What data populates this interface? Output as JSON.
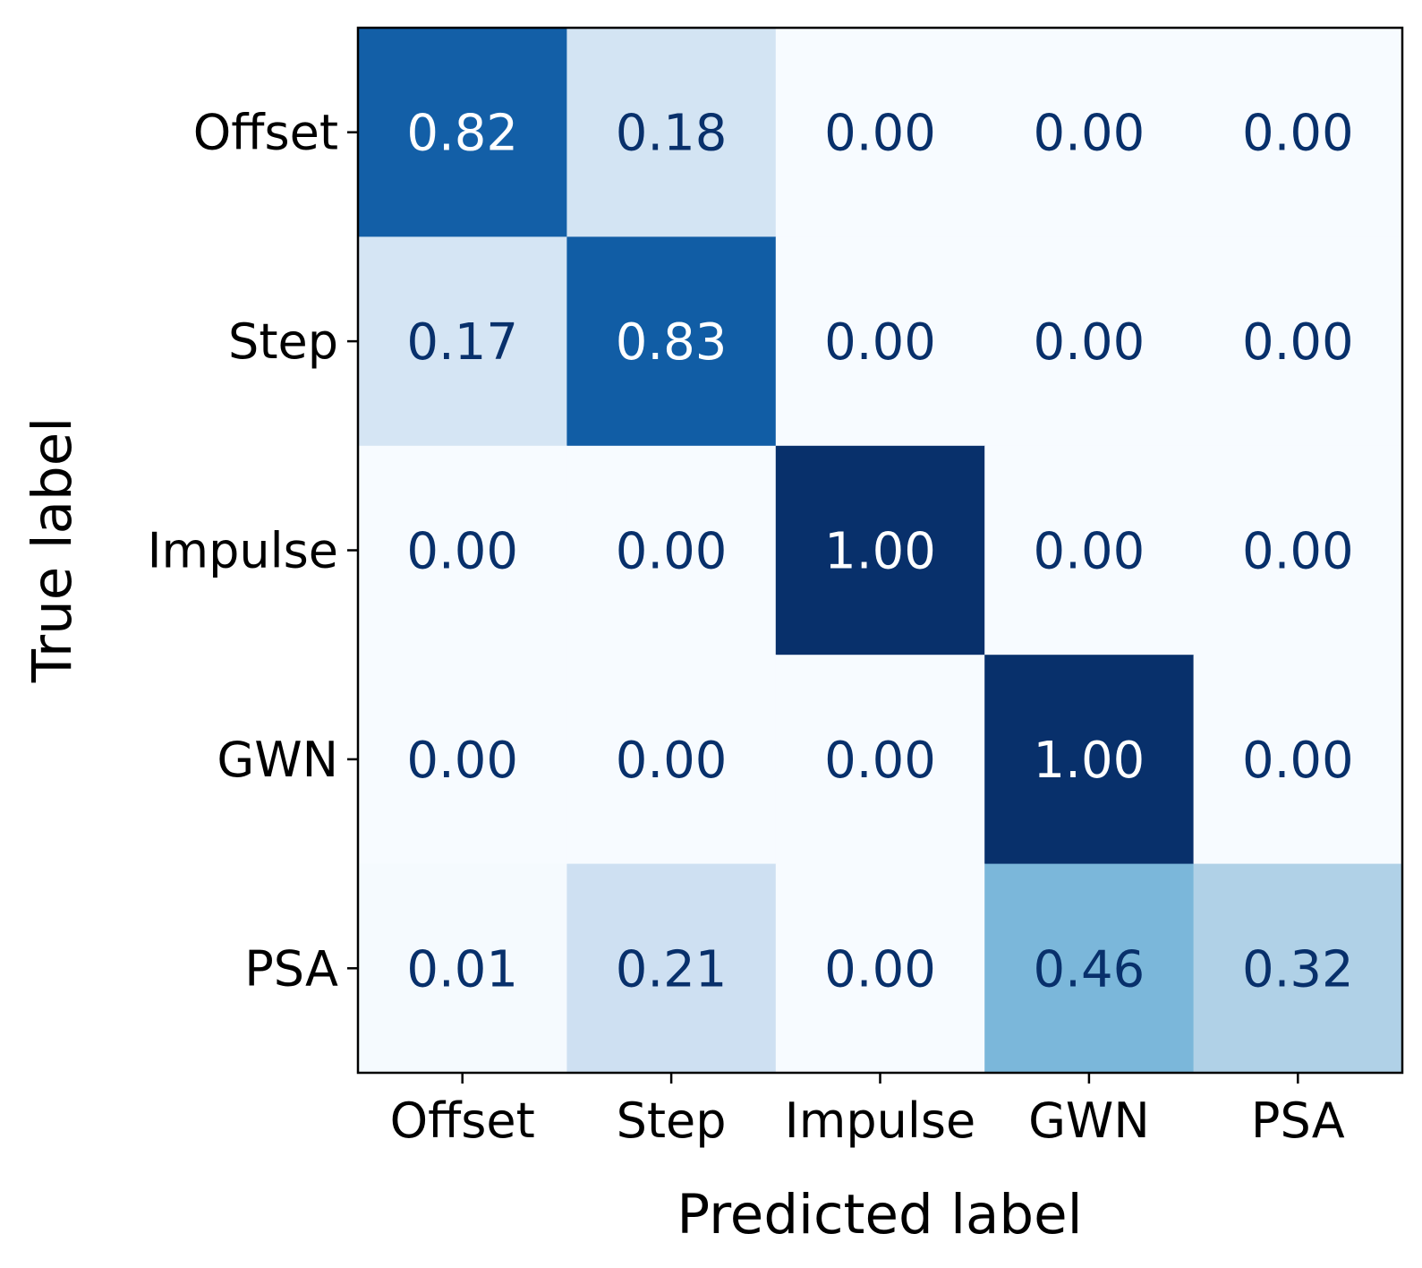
{
  "chart_data": {
    "type": "heatmap",
    "title": "",
    "xlabel": "Predicted label",
    "ylabel": "True label",
    "x_categories": [
      "Offset",
      "Step",
      "Impulse",
      "GWN",
      "PSA"
    ],
    "y_categories": [
      "Offset",
      "Step",
      "Impulse",
      "GWN",
      "PSA"
    ],
    "values": [
      [
        0.82,
        0.18,
        0.0,
        0.0,
        0.0
      ],
      [
        0.17,
        0.83,
        0.0,
        0.0,
        0.0
      ],
      [
        0.0,
        0.0,
        1.0,
        0.0,
        0.0
      ],
      [
        0.0,
        0.0,
        0.0,
        1.0,
        0.0
      ],
      [
        0.01,
        0.21,
        0.0,
        0.46,
        0.32
      ]
    ],
    "cell_labels": [
      [
        "0.82",
        "0.18",
        "0.00",
        "0.00",
        "0.00"
      ],
      [
        "0.17",
        "0.83",
        "0.00",
        "0.00",
        "0.00"
      ],
      [
        "0.00",
        "0.00",
        "1.00",
        "0.00",
        "0.00"
      ],
      [
        "0.00",
        "0.00",
        "0.00",
        "1.00",
        "0.00"
      ],
      [
        "0.01",
        "0.21",
        "0.00",
        "0.46",
        "0.32"
      ]
    ],
    "colormap": "Blues",
    "vmin": 0,
    "vmax": 1,
    "colorbar": false,
    "grid": false
  }
}
